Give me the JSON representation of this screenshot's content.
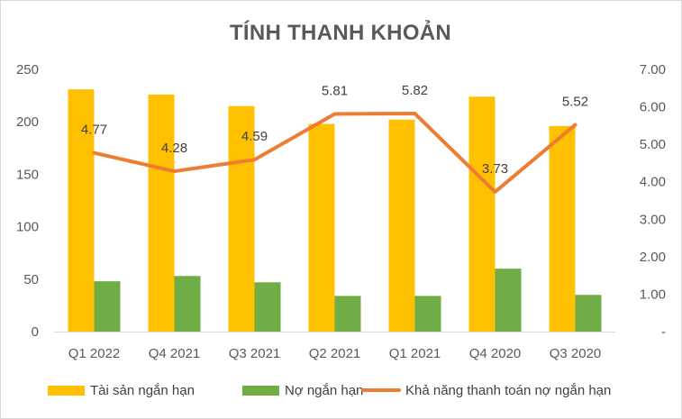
{
  "chart_data": {
    "type": "bar",
    "title": "TÍNH THANH KHOẢN",
    "categories": [
      "Q1 2022",
      "Q4 2021",
      "Q3 2021",
      "Q2 2021",
      "Q1 2021",
      "Q4 2020",
      "Q3 2020"
    ],
    "series": [
      {
        "name": "Tài sản ngắn hạn",
        "type": "bar",
        "axis": "left",
        "color": "#FFC000",
        "values": [
          231,
          226,
          215,
          198,
          202,
          224,
          196
        ]
      },
      {
        "name": "Nợ ngắn hạn",
        "type": "bar",
        "axis": "left",
        "color": "#70AD47",
        "values": [
          48,
          53,
          47,
          34,
          34,
          60,
          35
        ]
      },
      {
        "name": "Khả năng thanh toán nợ ngắn hạn",
        "type": "line",
        "axis": "right",
        "color": "#ED7D31",
        "values": [
          4.77,
          4.28,
          4.59,
          5.81,
          5.82,
          3.73,
          5.52
        ],
        "labels": [
          "4.77",
          "4.28",
          "4.59",
          "5.81",
          "5.82",
          "3.73",
          "5.52"
        ]
      }
    ],
    "y_left": {
      "ylim": [
        0,
        250
      ],
      "ticks": [
        "0",
        "50",
        "100",
        "150",
        "200",
        "250"
      ]
    },
    "y_right": {
      "ylim": [
        0,
        7
      ],
      "ticks": [
        "-",
        "1.00",
        "2.00",
        "3.00",
        "4.00",
        "5.00",
        "6.00",
        "7.00"
      ]
    },
    "grid": false,
    "legend_position": "bottom"
  }
}
